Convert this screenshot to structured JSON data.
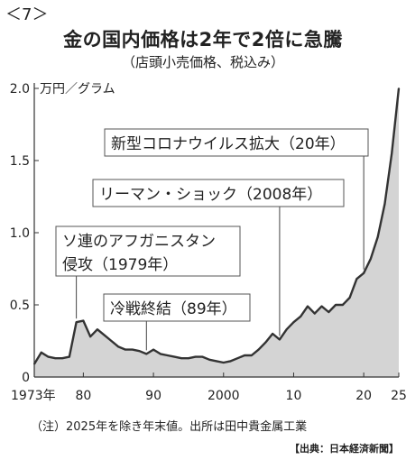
{
  "figure_number": "＜7＞",
  "chart_data": {
    "type": "area",
    "title": "金の国内価格は2年で2倍に急騰",
    "subtitle": "（店頭小売価格、税込み）",
    "unit_label": "万円／グラム",
    "ylim": [
      0,
      2.0
    ],
    "xlim": [
      1973,
      2025
    ],
    "y_ticks": [
      "0",
      "0.5",
      "1.0",
      "1.5",
      "2.0"
    ],
    "y_tick_values": [
      0,
      0.5,
      1.0,
      1.5,
      2.0
    ],
    "x_ticks": [
      "1973年",
      "80",
      "90",
      "2000",
      "10",
      "20",
      "25"
    ],
    "x_tick_values": [
      1973,
      1980,
      1990,
      2000,
      2010,
      2020,
      2025
    ],
    "x": [
      1973,
      1974,
      1975,
      1976,
      1977,
      1978,
      1979,
      1980,
      1981,
      1982,
      1983,
      1984,
      1985,
      1986,
      1987,
      1988,
      1989,
      1990,
      1991,
      1992,
      1993,
      1994,
      1995,
      1996,
      1997,
      1998,
      1999,
      2000,
      2001,
      2002,
      2003,
      2004,
      2005,
      2006,
      2007,
      2008,
      2009,
      2010,
      2011,
      2012,
      2013,
      2014,
      2015,
      2016,
      2017,
      2018,
      2019,
      2020,
      2021,
      2022,
      2023,
      2024,
      2025
    ],
    "values": [
      0.09,
      0.17,
      0.14,
      0.13,
      0.13,
      0.14,
      0.38,
      0.39,
      0.28,
      0.33,
      0.29,
      0.25,
      0.21,
      0.19,
      0.19,
      0.18,
      0.16,
      0.19,
      0.16,
      0.15,
      0.14,
      0.13,
      0.13,
      0.14,
      0.14,
      0.12,
      0.11,
      0.1,
      0.11,
      0.13,
      0.15,
      0.15,
      0.19,
      0.24,
      0.3,
      0.26,
      0.33,
      0.38,
      0.42,
      0.49,
      0.44,
      0.49,
      0.45,
      0.5,
      0.5,
      0.55,
      0.68,
      0.72,
      0.82,
      0.97,
      1.2,
      1.55,
      2.0
    ],
    "annotations": [
      {
        "lines": [
          "新型コロナウイルス拡大（20年）"
        ],
        "x": 2020
      },
      {
        "lines": [
          "リーマン・ショック（2008年）"
        ],
        "x": 2008
      },
      {
        "lines": [
          "ソ連のアフガニスタン",
          "侵攻（1979年）"
        ],
        "x": 1979
      },
      {
        "lines": [
          "冷戦終結（89年）"
        ],
        "x": 1989
      }
    ],
    "note": "（注）2025年を除き年末値。出所は田中貴金属工業",
    "source": "【出典：日本経済新聞】",
    "colors": {
      "line": "#333333",
      "fill": "#d4d4d4",
      "box": "#ffffff"
    }
  }
}
